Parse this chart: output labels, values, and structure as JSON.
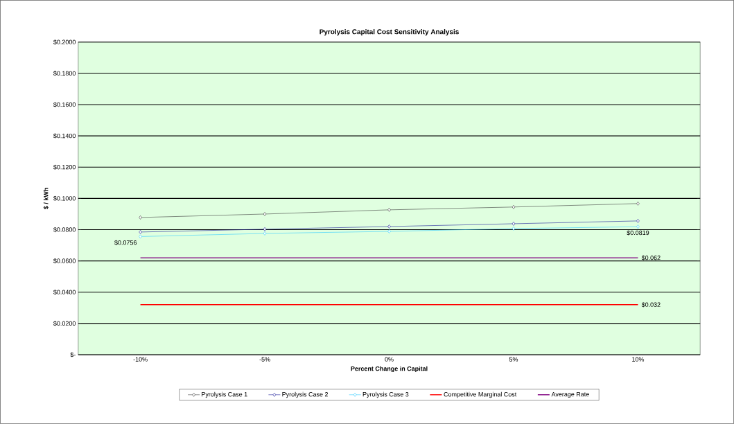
{
  "chart_data": {
    "type": "line",
    "title": "Pyrolysis Capital Cost Sensitivity Analysis",
    "xlabel": "Percent Change in Capital",
    "ylabel": "$ / kWh",
    "categories": [
      "-10%",
      "-5%",
      "0%",
      "5%",
      "10%"
    ],
    "series": [
      {
        "name": "Pyrolysis Case 1",
        "color": "#404040",
        "marker": "diamond",
        "values": [
          0.0878,
          0.09,
          0.0927,
          0.0945,
          0.0967
        ]
      },
      {
        "name": "Pyrolysis Case 2",
        "color": "#1f1f9a",
        "marker": "diamond",
        "values": [
          0.0785,
          0.0803,
          0.082,
          0.0838,
          0.0856
        ]
      },
      {
        "name": "Pyrolysis Case 3",
        "color": "#33ccff",
        "marker": "diamond",
        "values": [
          0.0756,
          0.0776,
          0.0789,
          0.0807,
          0.0819
        ],
        "value_labels": [
          "$0.0756",
          null,
          null,
          null,
          "$0.0819"
        ]
      },
      {
        "name": "Competitive Marginal Cost",
        "color": "#ff0000",
        "marker": "none",
        "values": [
          0.032,
          0.032,
          0.032,
          0.032,
          0.032
        ],
        "value_labels": [
          null,
          null,
          null,
          null,
          "$0.032"
        ]
      },
      {
        "name": "Average Rate",
        "color": "#800080",
        "marker": "none",
        "values": [
          0.062,
          0.062,
          0.062,
          0.062,
          0.062
        ],
        "value_labels": [
          null,
          null,
          null,
          null,
          "$0.062"
        ]
      }
    ],
    "ylim": [
      0,
      0.2
    ],
    "yticks": [
      {
        "value": 0,
        "label": "$-"
      },
      {
        "value": 0.02,
        "label": "$0.0200"
      },
      {
        "value": 0.04,
        "label": "$0.0400"
      },
      {
        "value": 0.06,
        "label": "$0.0600"
      },
      {
        "value": 0.08,
        "label": "$0.0800"
      },
      {
        "value": 0.1,
        "label": "$0.1000"
      },
      {
        "value": 0.12,
        "label": "$0.1200"
      },
      {
        "value": 0.14,
        "label": "$0.1400"
      },
      {
        "value": 0.16,
        "label": "$0.1600"
      },
      {
        "value": 0.18,
        "label": "$0.1800"
      },
      {
        "value": 0.2,
        "label": "$0.2000"
      }
    ],
    "grid": "y",
    "legend": "bottom"
  }
}
